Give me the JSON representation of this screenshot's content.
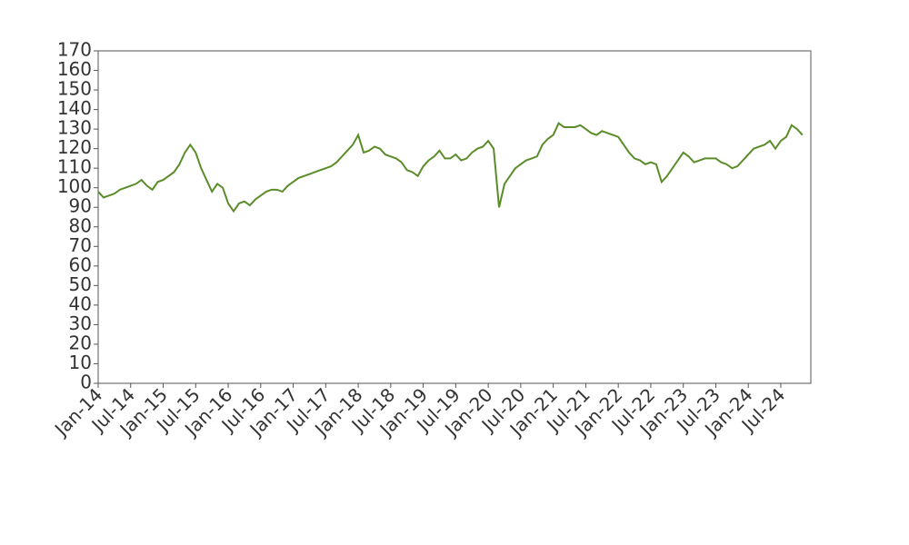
{
  "chart_data": {
    "type": "line",
    "x": [
      "Jan-14",
      "Feb-14",
      "Mar-14",
      "Apr-14",
      "May-14",
      "Jun-14",
      "Jul-14",
      "Aug-14",
      "Sep-14",
      "Oct-14",
      "Nov-14",
      "Dec-14",
      "Jan-15",
      "Feb-15",
      "Mar-15",
      "Apr-15",
      "May-15",
      "Jun-15",
      "Jul-15",
      "Aug-15",
      "Sep-15",
      "Oct-15",
      "Nov-15",
      "Dec-15",
      "Jan-16",
      "Feb-16",
      "Mar-16",
      "Apr-16",
      "May-16",
      "Jun-16",
      "Jul-16",
      "Aug-16",
      "Sep-16",
      "Oct-16",
      "Nov-16",
      "Dec-16",
      "Jan-17",
      "Feb-17",
      "Mar-17",
      "Apr-17",
      "May-17",
      "Jun-17",
      "Jul-17",
      "Aug-17",
      "Sep-17",
      "Oct-17",
      "Nov-17",
      "Dec-17",
      "Jan-18",
      "Feb-18",
      "Mar-18",
      "Apr-18",
      "May-18",
      "Jun-18",
      "Jul-18",
      "Aug-18",
      "Sep-18",
      "Oct-18",
      "Nov-18",
      "Dec-18",
      "Jan-19",
      "Feb-19",
      "Mar-19",
      "Apr-19",
      "May-19",
      "Jun-19",
      "Jul-19",
      "Aug-19",
      "Sep-19",
      "Oct-19",
      "Nov-19",
      "Dec-19",
      "Jan-20",
      "Feb-20",
      "Mar-20",
      "Apr-20",
      "May-20",
      "Jun-20",
      "Jul-20",
      "Aug-20",
      "Sep-20",
      "Oct-20",
      "Nov-20",
      "Dec-20",
      "Jan-21",
      "Feb-21",
      "Mar-21",
      "Apr-21",
      "May-21",
      "Jun-21",
      "Jul-21",
      "Aug-21",
      "Sep-21",
      "Oct-21",
      "Nov-21",
      "Dec-21",
      "Jan-22",
      "Feb-22",
      "Mar-22",
      "Apr-22",
      "May-22",
      "Jun-22",
      "Jul-22",
      "Aug-22",
      "Sep-22",
      "Oct-22",
      "Nov-22",
      "Dec-22",
      "Jan-23",
      "Feb-23",
      "Mar-23",
      "Apr-23",
      "May-23",
      "Jun-23",
      "Jul-23",
      "Aug-23",
      "Sep-23",
      "Oct-23",
      "Nov-23",
      "Dec-23",
      "Jan-24",
      "Feb-24",
      "Mar-24",
      "Apr-24",
      "May-24",
      "Jun-24",
      "Jul-24",
      "Aug-24",
      "Sep-24",
      "Oct-24",
      "Nov-24"
    ],
    "series": [
      {
        "color": "#5b8c2a",
        "values": [
          98,
          95,
          96,
          97,
          99,
          100,
          101,
          102,
          104,
          101,
          99,
          103,
          104,
          106,
          108,
          112,
          118,
          122,
          118,
          110,
          104,
          98,
          102,
          100,
          92,
          88,
          92,
          93,
          91,
          94,
          96,
          98,
          99,
          99,
          98,
          101,
          103,
          105,
          106,
          107,
          108,
          109,
          110,
          111,
          113,
          116,
          119,
          122,
          127,
          118,
          119,
          121,
          120,
          117,
          116,
          115,
          113,
          109,
          108,
          106,
          111,
          114,
          116,
          119,
          115,
          115,
          117,
          114,
          115,
          118,
          120,
          121,
          124,
          120,
          90,
          102,
          106,
          110,
          112,
          114,
          115,
          116,
          122,
          125,
          127,
          133,
          131,
          131,
          131,
          132,
          130,
          128,
          127,
          129,
          128,
          127,
          126,
          122,
          118,
          115,
          114,
          112,
          113,
          112,
          103,
          106,
          110,
          114,
          118,
          116,
          113,
          114,
          115,
          115,
          115,
          113,
          112,
          110,
          111,
          114,
          117,
          120,
          121,
          122,
          124,
          120,
          124,
          126,
          132,
          130,
          127
        ]
      }
    ],
    "xticks": [
      "Jan-14",
      "Jul-14",
      "Jan-15",
      "Jul-15",
      "Jan-16",
      "Jul-16",
      "Jan-17",
      "Jul-17",
      "Jan-18",
      "Jul-18",
      "Jan-19",
      "Jul-19",
      "Jan-20",
      "Jul-20",
      "Jan-21",
      "Jul-21",
      "Jan-22",
      "Jul-22",
      "Jan-23",
      "Jul-23",
      "Jan-24",
      "Jul-24"
    ],
    "ylim": [
      0,
      170
    ],
    "yticks": [
      0,
      10,
      20,
      30,
      40,
      50,
      60,
      70,
      80,
      90,
      100,
      110,
      120,
      130,
      140,
      150,
      160,
      170
    ],
    "grid": false
  }
}
